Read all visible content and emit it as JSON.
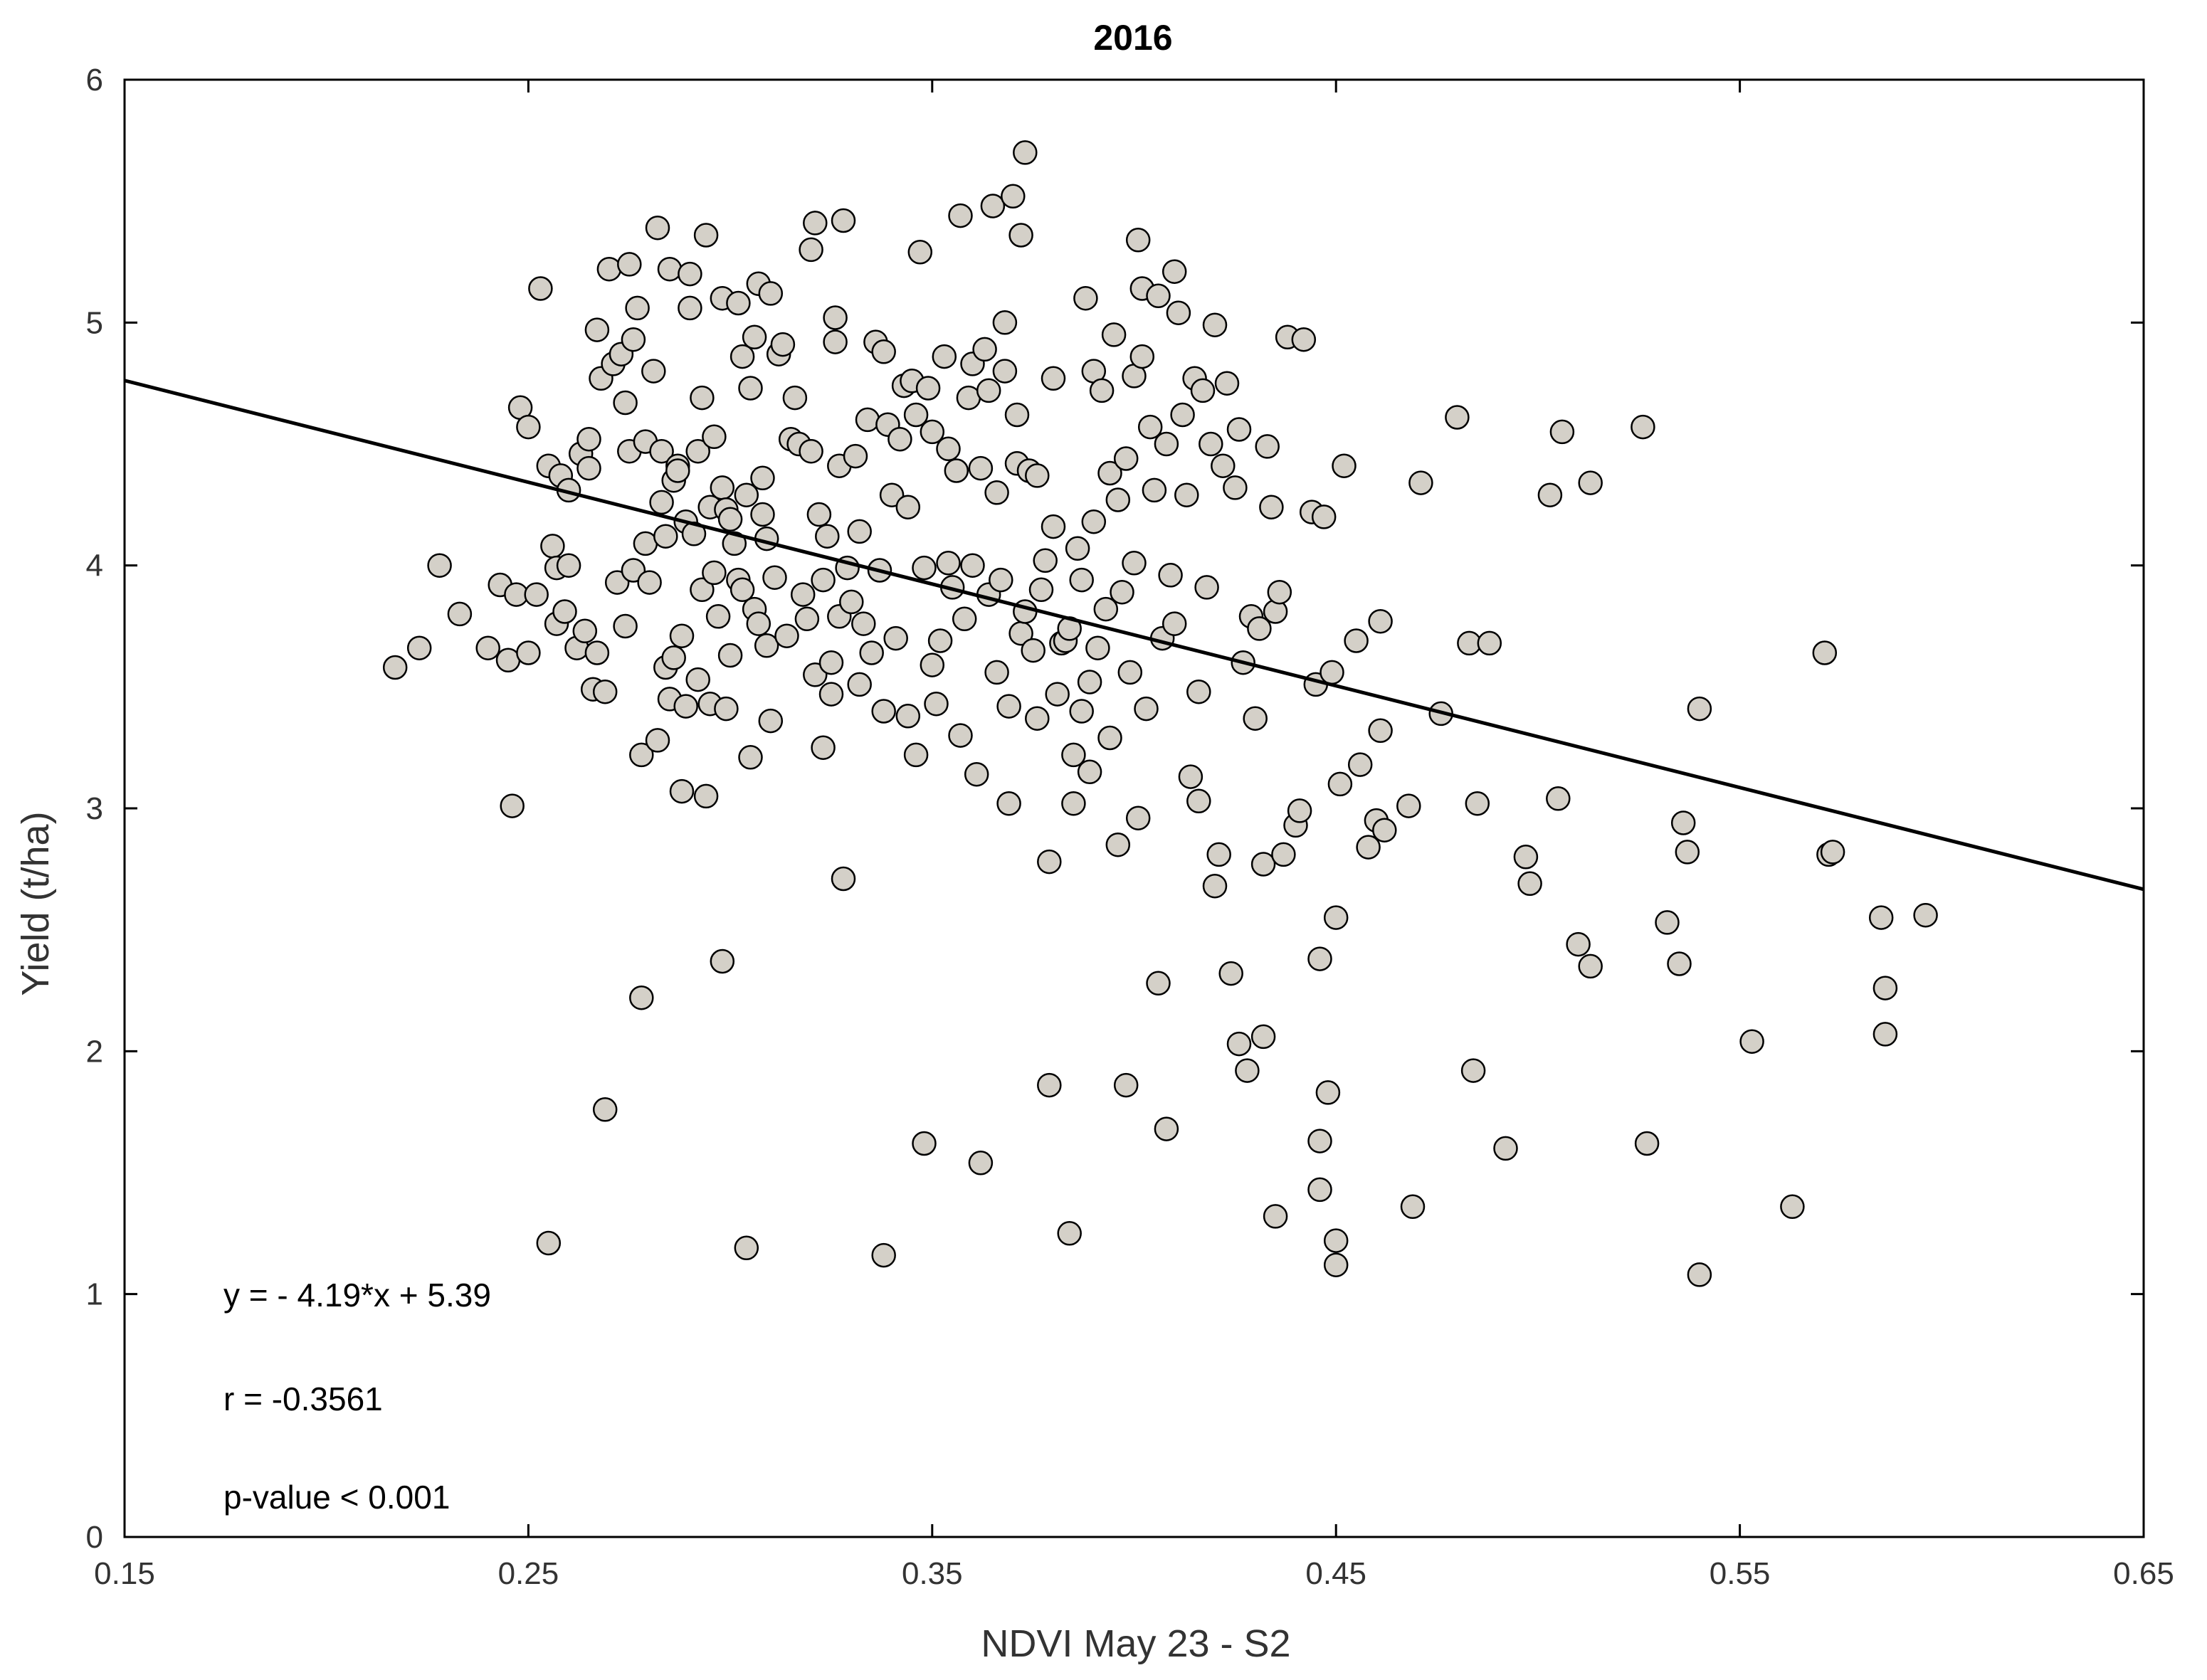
{
  "chart_data": {
    "type": "scatter",
    "title": "2016",
    "xlabel": "NDVI May 23 - S2",
    "ylabel": "Yield (t/ha)",
    "xlim": [
      0.15,
      0.65
    ],
    "ylim": [
      0,
      6
    ],
    "xticks": [
      0.15,
      0.25,
      0.35,
      0.45,
      0.55,
      0.65
    ],
    "xtick_labels": [
      "0.15",
      "0.25",
      "0.35",
      "0.45",
      "0.55",
      "0.65"
    ],
    "yticks": [
      0,
      1,
      2,
      3,
      4,
      5,
      6
    ],
    "ytick_labels": [
      "0",
      "1",
      "2",
      "3",
      "4",
      "5",
      "6"
    ],
    "grid": false,
    "marker_fill": "#d4d0c8",
    "marker_edge": "#000000",
    "line_color": "#000000",
    "regression": {
      "slope": -4.19,
      "intercept": 5.39
    },
    "annotations": [
      "y = - 4.19*x + 5.39",
      "r = -0.3561",
      "p-value < 0.001"
    ],
    "points": [
      [
        0.217,
        3.58
      ],
      [
        0.223,
        3.66
      ],
      [
        0.228,
        4.0
      ],
      [
        0.233,
        3.8
      ],
      [
        0.24,
        3.66
      ],
      [
        0.243,
        3.92
      ],
      [
        0.245,
        3.61
      ],
      [
        0.246,
        3.01
      ],
      [
        0.247,
        3.88
      ],
      [
        0.248,
        4.65
      ],
      [
        0.25,
        4.57
      ],
      [
        0.25,
        3.64
      ],
      [
        0.252,
        3.88
      ],
      [
        0.253,
        5.14
      ],
      [
        0.255,
        1.21
      ],
      [
        0.255,
        4.41
      ],
      [
        0.256,
        4.08
      ],
      [
        0.257,
        3.76
      ],
      [
        0.257,
        3.99
      ],
      [
        0.258,
        4.37
      ],
      [
        0.259,
        3.81
      ],
      [
        0.26,
        4.0
      ],
      [
        0.26,
        4.31
      ],
      [
        0.262,
        3.66
      ],
      [
        0.263,
        4.46
      ],
      [
        0.264,
        3.73
      ],
      [
        0.265,
        4.4
      ],
      [
        0.265,
        4.52
      ],
      [
        0.266,
        3.49
      ],
      [
        0.267,
        4.97
      ],
      [
        0.267,
        3.64
      ],
      [
        0.268,
        4.77
      ],
      [
        0.269,
        1.76
      ],
      [
        0.269,
        3.48
      ],
      [
        0.27,
        5.22
      ],
      [
        0.271,
        4.83
      ],
      [
        0.272,
        3.93
      ],
      [
        0.273,
        4.87
      ],
      [
        0.274,
        3.75
      ],
      [
        0.274,
        4.67
      ],
      [
        0.275,
        5.24
      ],
      [
        0.275,
        4.47
      ],
      [
        0.276,
        3.98
      ],
      [
        0.276,
        4.93
      ],
      [
        0.277,
        5.06
      ],
      [
        0.278,
        3.22
      ],
      [
        0.278,
        2.22
      ],
      [
        0.279,
        4.51
      ],
      [
        0.279,
        4.09
      ],
      [
        0.28,
        3.93
      ],
      [
        0.281,
        4.8
      ],
      [
        0.282,
        3.28
      ],
      [
        0.282,
        5.39
      ],
      [
        0.283,
        4.47
      ],
      [
        0.283,
        4.26
      ],
      [
        0.284,
        4.12
      ],
      [
        0.284,
        3.58
      ],
      [
        0.285,
        5.22
      ],
      [
        0.285,
        3.45
      ],
      [
        0.286,
        4.35
      ],
      [
        0.286,
        3.62
      ],
      [
        0.287,
        4.41
      ],
      [
        0.287,
        4.39
      ],
      [
        0.288,
        3.07
      ],
      [
        0.288,
        3.71
      ],
      [
        0.289,
        4.18
      ],
      [
        0.289,
        3.42
      ],
      [
        0.29,
        5.2
      ],
      [
        0.29,
        5.06
      ],
      [
        0.291,
        4.13
      ],
      [
        0.292,
        3.53
      ],
      [
        0.292,
        4.47
      ],
      [
        0.293,
        3.9
      ],
      [
        0.293,
        4.69
      ],
      [
        0.294,
        5.36
      ],
      [
        0.294,
        3.05
      ],
      [
        0.295,
        4.24
      ],
      [
        0.295,
        3.43
      ],
      [
        0.296,
        4.53
      ],
      [
        0.296,
        3.97
      ],
      [
        0.297,
        3.79
      ],
      [
        0.298,
        4.32
      ],
      [
        0.298,
        5.1
      ],
      [
        0.298,
        2.37
      ],
      [
        0.299,
        4.23
      ],
      [
        0.299,
        3.41
      ],
      [
        0.3,
        3.63
      ],
      [
        0.3,
        4.19
      ],
      [
        0.301,
        4.09
      ],
      [
        0.302,
        3.94
      ],
      [
        0.302,
        5.08
      ],
      [
        0.303,
        4.86
      ],
      [
        0.303,
        3.9
      ],
      [
        0.304,
        4.29
      ],
      [
        0.304,
        1.19
      ],
      [
        0.305,
        3.21
      ],
      [
        0.305,
        4.73
      ],
      [
        0.306,
        4.94
      ],
      [
        0.306,
        3.82
      ],
      [
        0.307,
        3.76
      ],
      [
        0.307,
        5.16
      ],
      [
        0.308,
        4.36
      ],
      [
        0.308,
        4.21
      ],
      [
        0.309,
        3.67
      ],
      [
        0.309,
        4.11
      ],
      [
        0.31,
        3.36
      ],
      [
        0.31,
        5.12
      ],
      [
        0.311,
        3.95
      ],
      [
        0.312,
        4.87
      ],
      [
        0.313,
        4.91
      ],
      [
        0.314,
        3.71
      ],
      [
        0.315,
        4.52
      ],
      [
        0.316,
        4.69
      ],
      [
        0.317,
        4.5
      ],
      [
        0.318,
        3.88
      ],
      [
        0.319,
        3.78
      ],
      [
        0.32,
        5.3
      ],
      [
        0.32,
        4.47
      ],
      [
        0.321,
        3.55
      ],
      [
        0.321,
        5.41
      ],
      [
        0.322,
        4.21
      ],
      [
        0.323,
        3.25
      ],
      [
        0.323,
        3.94
      ],
      [
        0.324,
        4.12
      ],
      [
        0.325,
        3.6
      ],
      [
        0.325,
        3.47
      ],
      [
        0.326,
        4.92
      ],
      [
        0.326,
        5.02
      ],
      [
        0.327,
        4.41
      ],
      [
        0.327,
        3.79
      ],
      [
        0.328,
        2.71
      ],
      [
        0.328,
        5.42
      ],
      [
        0.329,
        3.99
      ],
      [
        0.33,
        3.85
      ],
      [
        0.331,
        4.45
      ],
      [
        0.332,
        3.51
      ],
      [
        0.332,
        4.14
      ],
      [
        0.333,
        3.76
      ],
      [
        0.334,
        4.6
      ],
      [
        0.335,
        3.64
      ],
      [
        0.336,
        4.92
      ],
      [
        0.337,
        3.98
      ],
      [
        0.338,
        3.4
      ],
      [
        0.338,
        1.16
      ],
      [
        0.338,
        4.88
      ],
      [
        0.339,
        4.58
      ],
      [
        0.34,
        4.29
      ],
      [
        0.341,
        3.7
      ],
      [
        0.342,
        4.52
      ],
      [
        0.343,
        4.74
      ],
      [
        0.344,
        3.38
      ],
      [
        0.344,
        4.24
      ],
      [
        0.345,
        4.76
      ],
      [
        0.346,
        4.62
      ],
      [
        0.346,
        3.22
      ],
      [
        0.347,
        5.29
      ],
      [
        0.348,
        1.62
      ],
      [
        0.348,
        3.99
      ],
      [
        0.349,
        4.73
      ],
      [
        0.35,
        4.55
      ],
      [
        0.35,
        3.59
      ],
      [
        0.351,
        3.43
      ],
      [
        0.352,
        3.69
      ],
      [
        0.353,
        4.86
      ],
      [
        0.354,
        4.01
      ],
      [
        0.354,
        4.48
      ],
      [
        0.355,
        3.91
      ],
      [
        0.356,
        4.39
      ],
      [
        0.357,
        5.44
      ],
      [
        0.357,
        3.3
      ],
      [
        0.358,
        3.78
      ],
      [
        0.359,
        4.69
      ],
      [
        0.36,
        4.0
      ],
      [
        0.36,
        4.83
      ],
      [
        0.361,
        3.14
      ],
      [
        0.362,
        4.4
      ],
      [
        0.362,
        1.54
      ],
      [
        0.363,
        4.89
      ],
      [
        0.364,
        3.88
      ],
      [
        0.364,
        4.72
      ],
      [
        0.365,
        5.48
      ],
      [
        0.366,
        3.56
      ],
      [
        0.366,
        4.3
      ],
      [
        0.367,
        3.94
      ],
      [
        0.368,
        5.0
      ],
      [
        0.368,
        4.8
      ],
      [
        0.369,
        3.02
      ],
      [
        0.369,
        3.42
      ],
      [
        0.37,
        5.52
      ],
      [
        0.371,
        4.62
      ],
      [
        0.371,
        4.42
      ],
      [
        0.372,
        3.72
      ],
      [
        0.372,
        5.36
      ],
      [
        0.373,
        5.7
      ],
      [
        0.373,
        3.81
      ],
      [
        0.374,
        4.39
      ],
      [
        0.375,
        3.65
      ],
      [
        0.376,
        3.37
      ],
      [
        0.376,
        4.37
      ],
      [
        0.377,
        3.9
      ],
      [
        0.378,
        4.02
      ],
      [
        0.379,
        1.86
      ],
      [
        0.379,
        2.78
      ],
      [
        0.38,
        4.77
      ],
      [
        0.38,
        4.16
      ],
      [
        0.381,
        3.47
      ],
      [
        0.382,
        3.68
      ],
      [
        0.383,
        3.69
      ],
      [
        0.384,
        1.25
      ],
      [
        0.384,
        3.74
      ],
      [
        0.385,
        3.02
      ],
      [
        0.385,
        3.22
      ],
      [
        0.386,
        4.07
      ],
      [
        0.387,
        3.4
      ],
      [
        0.387,
        3.94
      ],
      [
        0.388,
        5.1
      ],
      [
        0.389,
        3.15
      ],
      [
        0.389,
        3.52
      ],
      [
        0.39,
        4.18
      ],
      [
        0.39,
        4.8
      ],
      [
        0.391,
        3.66
      ],
      [
        0.392,
        4.72
      ],
      [
        0.393,
        3.82
      ],
      [
        0.394,
        3.29
      ],
      [
        0.394,
        4.38
      ],
      [
        0.395,
        4.95
      ],
      [
        0.396,
        2.85
      ],
      [
        0.396,
        4.27
      ],
      [
        0.397,
        3.89
      ],
      [
        0.398,
        1.86
      ],
      [
        0.398,
        4.44
      ],
      [
        0.399,
        3.56
      ],
      [
        0.4,
        4.78
      ],
      [
        0.4,
        4.01
      ],
      [
        0.401,
        2.96
      ],
      [
        0.401,
        5.34
      ],
      [
        0.402,
        4.86
      ],
      [
        0.402,
        5.14
      ],
      [
        0.403,
        3.41
      ],
      [
        0.404,
        4.57
      ],
      [
        0.405,
        4.31
      ],
      [
        0.406,
        2.28
      ],
      [
        0.406,
        5.11
      ],
      [
        0.407,
        3.7
      ],
      [
        0.408,
        1.68
      ],
      [
        0.408,
        4.5
      ],
      [
        0.409,
        3.96
      ],
      [
        0.41,
        5.21
      ],
      [
        0.41,
        3.76
      ],
      [
        0.411,
        5.04
      ],
      [
        0.412,
        4.62
      ],
      [
        0.413,
        4.29
      ],
      [
        0.414,
        3.13
      ],
      [
        0.415,
        4.77
      ],
      [
        0.416,
        3.03
      ],
      [
        0.416,
        3.48
      ],
      [
        0.417,
        4.72
      ],
      [
        0.418,
        3.91
      ],
      [
        0.419,
        4.5
      ],
      [
        0.42,
        4.99
      ],
      [
        0.42,
        2.68
      ],
      [
        0.421,
        2.81
      ],
      [
        0.422,
        4.41
      ],
      [
        0.423,
        4.75
      ],
      [
        0.424,
        2.32
      ],
      [
        0.425,
        4.32
      ],
      [
        0.426,
        2.03
      ],
      [
        0.426,
        4.56
      ],
      [
        0.427,
        3.6
      ],
      [
        0.428,
        1.92
      ],
      [
        0.429,
        3.79
      ],
      [
        0.43,
        3.37
      ],
      [
        0.431,
        3.74
      ],
      [
        0.432,
        2.06
      ],
      [
        0.432,
        2.77
      ],
      [
        0.433,
        4.49
      ],
      [
        0.434,
        4.24
      ],
      [
        0.435,
        3.81
      ],
      [
        0.435,
        1.32
      ],
      [
        0.436,
        3.89
      ],
      [
        0.437,
        2.81
      ],
      [
        0.438,
        4.94
      ],
      [
        0.44,
        2.93
      ],
      [
        0.441,
        2.99
      ],
      [
        0.442,
        4.93
      ],
      [
        0.444,
        4.22
      ],
      [
        0.445,
        3.51
      ],
      [
        0.446,
        1.63
      ],
      [
        0.446,
        1.43
      ],
      [
        0.446,
        2.38
      ],
      [
        0.447,
        4.2
      ],
      [
        0.448,
        1.83
      ],
      [
        0.449,
        3.56
      ],
      [
        0.45,
        2.55
      ],
      [
        0.45,
        1.22
      ],
      [
        0.45,
        1.12
      ],
      [
        0.451,
        3.1
      ],
      [
        0.452,
        4.41
      ],
      [
        0.455,
        3.69
      ],
      [
        0.456,
        3.18
      ],
      [
        0.458,
        2.84
      ],
      [
        0.46,
        2.95
      ],
      [
        0.461,
        3.32
      ],
      [
        0.461,
        3.77
      ],
      [
        0.462,
        2.91
      ],
      [
        0.468,
        3.01
      ],
      [
        0.469,
        1.36
      ],
      [
        0.471,
        4.34
      ],
      [
        0.476,
        3.39
      ],
      [
        0.48,
        4.61
      ],
      [
        0.483,
        3.68
      ],
      [
        0.484,
        1.92
      ],
      [
        0.485,
        3.02
      ],
      [
        0.488,
        3.68
      ],
      [
        0.492,
        1.6
      ],
      [
        0.497,
        2.8
      ],
      [
        0.498,
        2.69
      ],
      [
        0.503,
        4.29
      ],
      [
        0.505,
        3.04
      ],
      [
        0.506,
        4.55
      ],
      [
        0.51,
        2.44
      ],
      [
        0.513,
        2.35
      ],
      [
        0.513,
        4.34
      ],
      [
        0.526,
        4.57
      ],
      [
        0.527,
        1.62
      ],
      [
        0.532,
        2.53
      ],
      [
        0.535,
        2.36
      ],
      [
        0.536,
        2.94
      ],
      [
        0.537,
        2.82
      ],
      [
        0.54,
        3.41
      ],
      [
        0.54,
        1.08
      ],
      [
        0.553,
        2.04
      ],
      [
        0.563,
        1.36
      ],
      [
        0.571,
        3.64
      ],
      [
        0.572,
        2.81
      ],
      [
        0.573,
        2.82
      ],
      [
        0.585,
        2.55
      ],
      [
        0.586,
        2.26
      ],
      [
        0.586,
        2.07
      ],
      [
        0.596,
        2.56
      ]
    ]
  }
}
